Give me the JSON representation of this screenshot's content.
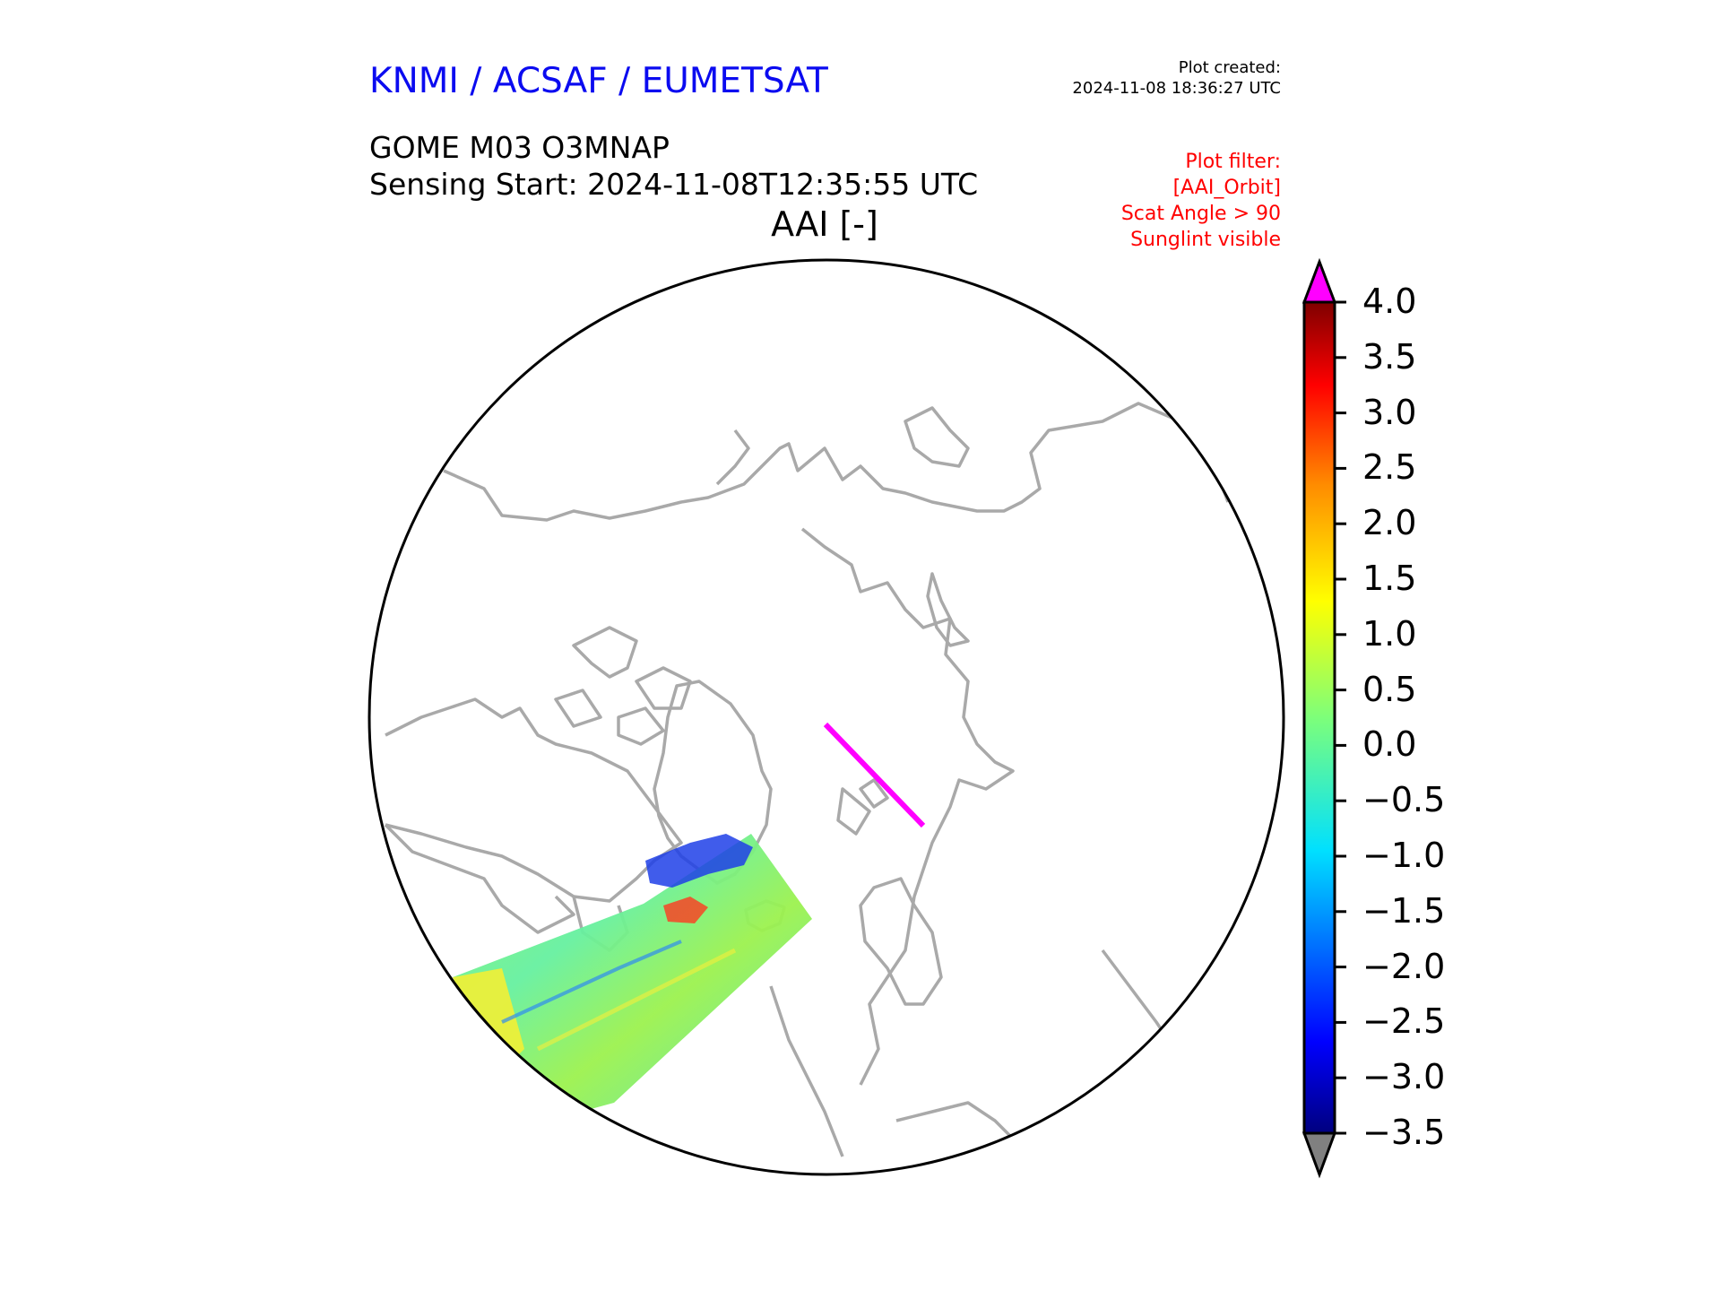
{
  "header": {
    "organization": "KNMI / ACSAF / EUMETSAT",
    "plot_created_label": "Plot created:",
    "plot_created_value": "2024-11-08 18:36:27 UTC"
  },
  "product": {
    "title": "GOME M03 O3MNAP",
    "sensing_start": "Sensing Start: 2024-11-08T12:35:55 UTC"
  },
  "plot_title": "AAI [-]",
  "plot_filter": [
    "Plot filter:",
    "[AAI_Orbit]",
    "Scat Angle > 90",
    "Sunglint visible"
  ],
  "colorbar": {
    "ticks": [
      "4.0",
      "3.5",
      "3.0",
      "2.5",
      "2.0",
      "1.5",
      "1.0",
      "0.5",
      "0.0",
      "−0.5",
      "−1.0",
      "−1.5",
      "−2.0",
      "−2.5",
      "−3.0",
      "−3.5"
    ],
    "range": [
      -3.5,
      4.0
    ],
    "extend_max_color": "#ff00ff",
    "extend_min_color": "#808080",
    "colormap": "jet"
  },
  "map": {
    "projection": "north-polar-stereographic",
    "coastline_color": "#a9a9a9",
    "boundary_color": "#000000",
    "orbit_track_color": "#ff00ff"
  },
  "chart_data": {
    "type": "heatmap",
    "title": "AAI [-]",
    "variable": "AAI",
    "colorbar_range": [
      -3.5,
      4.0
    ]
  }
}
